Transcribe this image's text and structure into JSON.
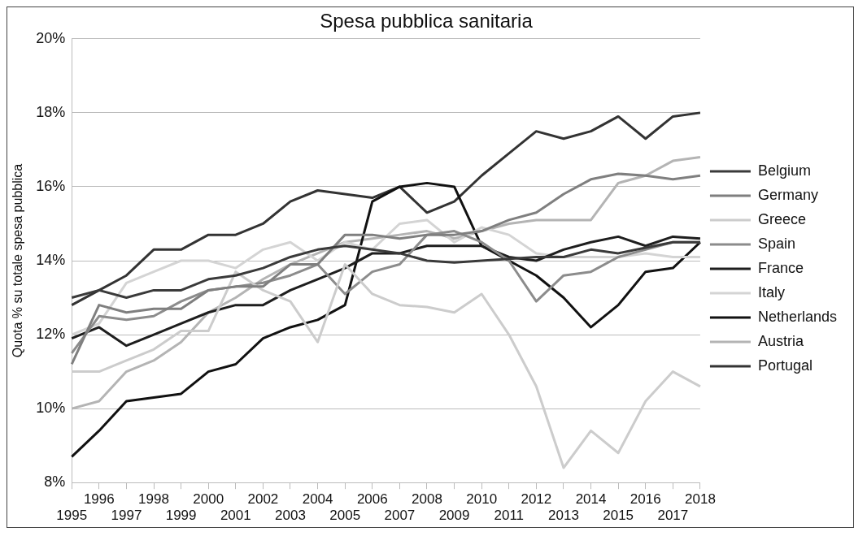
{
  "chart_data": {
    "type": "line",
    "title": "Spesa pubblica sanitaria",
    "ylabel": "Quota % su totale spesa pubblica",
    "categories": [
      "1995",
      "1996",
      "1997",
      "1998",
      "1999",
      "2000",
      "2001",
      "2002",
      "2003",
      "2004",
      "2005",
      "2006",
      "2007",
      "2008",
      "2009",
      "2010",
      "2011",
      "2012",
      "2013",
      "2014",
      "2015",
      "2016",
      "2017",
      "2018"
    ],
    "ylim": [
      8,
      20
    ],
    "yticks": [
      {
        "value": 8,
        "label": "8%"
      },
      {
        "value": 10,
        "label": "10%"
      },
      {
        "value": 12,
        "label": "12%"
      },
      {
        "value": 14,
        "label": "14%"
      },
      {
        "value": 16,
        "label": "16%"
      },
      {
        "value": 18,
        "label": "18%"
      },
      {
        "value": 20,
        "label": "20%"
      }
    ],
    "grid": "y",
    "legend": "right",
    "marker": "none",
    "line_style": "solid",
    "series": [
      {
        "name": "Belgium",
        "color": "#3a3a3a",
        "values": [
          13.0,
          13.2,
          13.0,
          13.2,
          13.2,
          13.5,
          13.6,
          13.8,
          14.1,
          14.3,
          14.4,
          14.3,
          14.2,
          14.0,
          13.95,
          14.0,
          14.05,
          14.1,
          14.1,
          14.3,
          14.2,
          14.35,
          14.5,
          14.5
        ]
      },
      {
        "name": "Germany",
        "color": "#7f7f7f",
        "values": [
          11.2,
          12.8,
          12.6,
          12.7,
          12.7,
          13.2,
          13.3,
          13.3,
          13.9,
          13.9,
          14.7,
          14.7,
          14.6,
          14.7,
          14.7,
          14.8,
          15.1,
          15.3,
          15.8,
          16.2,
          16.35,
          16.3,
          16.2,
          16.3
        ]
      },
      {
        "name": "Greece",
        "color": "#cccccc",
        "values": [
          11.0,
          11.0,
          11.3,
          11.6,
          12.1,
          12.1,
          13.7,
          13.2,
          12.9,
          11.8,
          13.9,
          13.1,
          12.8,
          12.75,
          12.6,
          13.1,
          12.0,
          10.6,
          8.4,
          9.4,
          8.8,
          10.2,
          11.0,
          10.6
        ]
      },
      {
        "name": "Spain",
        "color": "#8c8c8c",
        "values": [
          11.5,
          12.5,
          12.4,
          12.5,
          12.9,
          13.2,
          13.3,
          13.4,
          13.6,
          13.9,
          13.1,
          13.7,
          13.9,
          14.7,
          14.8,
          14.5,
          14.0,
          12.9,
          13.6,
          13.7,
          14.1,
          14.3,
          14.5,
          14.5
        ]
      },
      {
        "name": "France",
        "color": "#1e1e1e",
        "values": [
          11.9,
          12.2,
          11.7,
          12.0,
          12.3,
          12.6,
          12.8,
          12.8,
          13.2,
          13.5,
          13.8,
          14.2,
          14.2,
          14.4,
          14.4,
          14.4,
          14.1,
          14.0,
          14.3,
          14.5,
          14.65,
          14.4,
          14.65,
          14.6
        ]
      },
      {
        "name": "Italy",
        "color": "#d4d4d4",
        "values": [
          12.0,
          12.3,
          13.4,
          13.7,
          14.0,
          14.0,
          13.8,
          14.3,
          14.5,
          14.0,
          14.5,
          14.3,
          15.0,
          15.1,
          14.5,
          14.9,
          14.7,
          14.2,
          14.1,
          14.1,
          14.1,
          14.2,
          14.1,
          14.1
        ]
      },
      {
        "name": "Netherlands",
        "color": "#111111",
        "values": [
          8.7,
          9.4,
          10.2,
          10.3,
          10.4,
          11.0,
          11.2,
          11.9,
          12.2,
          12.4,
          12.8,
          15.6,
          16.0,
          16.1,
          16.0,
          14.4,
          14.0,
          13.6,
          13.0,
          12.2,
          12.8,
          13.7,
          13.8,
          14.5
        ]
      },
      {
        "name": "Austria",
        "color": "#b4b4b4",
        "values": [
          10.0,
          10.2,
          11.0,
          11.3,
          11.8,
          12.6,
          13.0,
          13.5,
          13.9,
          14.2,
          14.5,
          14.6,
          14.7,
          14.8,
          14.6,
          14.8,
          15.0,
          15.1,
          15.1,
          15.1,
          16.1,
          16.3,
          16.7,
          16.8
        ]
      },
      {
        "name": "Portugal",
        "color": "#333333",
        "values": [
          12.8,
          13.2,
          13.6,
          14.3,
          14.3,
          14.7,
          14.7,
          15.0,
          15.6,
          15.9,
          15.8,
          15.7,
          16.0,
          15.3,
          15.6,
          16.3,
          16.9,
          17.5,
          17.3,
          17.5,
          17.9,
          17.3,
          17.9,
          18.0
        ]
      }
    ]
  }
}
